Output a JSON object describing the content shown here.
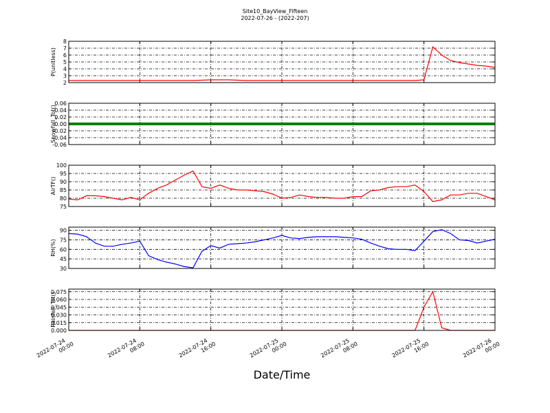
{
  "chart_data": [
    {
      "type": "line",
      "title": "Site10_BayView_Fifteen",
      "subtitle": "2022-07-26 - (2022-207)",
      "y_label": "P(unitless)",
      "color": "#ff0000",
      "ylim": [
        2,
        8
      ],
      "yticks": [
        2,
        3,
        4,
        5,
        6,
        7,
        8
      ],
      "grid": true,
      "xlim": [
        "2022-07-24 00:00",
        "2022-07-26 00:00"
      ],
      "xticks": [
        "2022-07-24 00:00",
        "2022-07-24 08:00",
        "2022-07-24 16:00",
        "2022-07-25 00:00",
        "2022-07-25 08:00",
        "2022-07-25 16:00",
        "2022-07-26 00:00"
      ],
      "x": [
        "2022-07-24 00:00",
        "2022-07-24 01:00",
        "2022-07-24 02:00",
        "2022-07-24 03:00",
        "2022-07-24 04:00",
        "2022-07-24 05:00",
        "2022-07-24 06:00",
        "2022-07-24 07:00",
        "2022-07-24 08:00",
        "2022-07-24 09:00",
        "2022-07-24 10:00",
        "2022-07-24 11:00",
        "2022-07-24 12:00",
        "2022-07-24 13:00",
        "2022-07-24 14:00",
        "2022-07-24 15:00",
        "2022-07-24 16:00",
        "2022-07-24 17:00",
        "2022-07-24 18:00",
        "2022-07-24 19:00",
        "2022-07-24 20:00",
        "2022-07-24 21:00",
        "2022-07-24 22:00",
        "2022-07-24 23:00",
        "2022-07-25 00:00",
        "2022-07-25 01:00",
        "2022-07-25 02:00",
        "2022-07-25 03:00",
        "2022-07-25 04:00",
        "2022-07-25 05:00",
        "2022-07-25 06:00",
        "2022-07-25 07:00",
        "2022-07-25 08:00",
        "2022-07-25 09:00",
        "2022-07-25 10:00",
        "2022-07-25 11:00",
        "2022-07-25 12:00",
        "2022-07-25 13:00",
        "2022-07-25 14:00",
        "2022-07-25 15:00",
        "2022-07-25 16:00",
        "2022-07-25 17:00",
        "2022-07-25 18:00",
        "2022-07-25 19:00",
        "2022-07-25 20:00",
        "2022-07-25 21:00",
        "2022-07-25 22:00",
        "2022-07-25 23:00",
        "2022-07-26 00:00"
      ],
      "values": [
        2.3,
        2.3,
        2.3,
        2.3,
        2.3,
        2.3,
        2.3,
        2.3,
        2.3,
        2.3,
        2.3,
        2.3,
        2.3,
        2.3,
        2.3,
        2.35,
        2.4,
        2.4,
        2.4,
        2.35,
        2.3,
        2.3,
        2.3,
        2.3,
        2.3,
        2.3,
        2.3,
        2.3,
        2.3,
        2.3,
        2.3,
        2.3,
        2.3,
        2.3,
        2.3,
        2.3,
        2.3,
        2.3,
        2.3,
        2.3,
        2.4,
        7.2,
        6.0,
        5.2,
        4.9,
        4.7,
        4.5,
        4.4,
        4.2
      ]
    },
    {
      "type": "line",
      "y_label": "Snowfall_Tot()",
      "color": "#008000",
      "thick": true,
      "ylim": [
        -0.06,
        0.06
      ],
      "yticks": [
        {
          "value": -0.06,
          "label": "-0.06"
        },
        {
          "value": -0.04,
          "label": "-0.04"
        },
        {
          "value": -0.02,
          "label": "-0.02"
        },
        {
          "value": 0,
          "label": "0.00"
        },
        0.02,
        0.04,
        0.06
      ],
      "grid": true,
      "xlim": [
        "2022-07-24 00:00",
        "2022-07-26 00:00"
      ],
      "xticks": [
        "2022-07-24 00:00",
        "2022-07-24 08:00",
        "2022-07-24 16:00",
        "2022-07-25 00:00",
        "2022-07-25 08:00",
        "2022-07-25 16:00",
        "2022-07-26 00:00"
      ],
      "x": [
        "2022-07-24 00:00",
        "2022-07-24 01:00",
        "2022-07-24 02:00",
        "2022-07-24 03:00",
        "2022-07-24 04:00",
        "2022-07-24 05:00",
        "2022-07-24 06:00",
        "2022-07-24 07:00",
        "2022-07-24 08:00",
        "2022-07-24 09:00",
        "2022-07-24 10:00",
        "2022-07-24 11:00",
        "2022-07-24 12:00",
        "2022-07-24 13:00",
        "2022-07-24 14:00",
        "2022-07-24 15:00",
        "2022-07-24 16:00",
        "2022-07-24 17:00",
        "2022-07-24 18:00",
        "2022-07-24 19:00",
        "2022-07-24 20:00",
        "2022-07-24 21:00",
        "2022-07-24 22:00",
        "2022-07-24 23:00",
        "2022-07-25 00:00",
        "2022-07-25 01:00",
        "2022-07-25 02:00",
        "2022-07-25 03:00",
        "2022-07-25 04:00",
        "2022-07-25 05:00",
        "2022-07-25 06:00",
        "2022-07-25 07:00",
        "2022-07-25 08:00",
        "2022-07-25 09:00",
        "2022-07-25 10:00",
        "2022-07-25 11:00",
        "2022-07-25 12:00",
        "2022-07-25 13:00",
        "2022-07-25 14:00",
        "2022-07-25 15:00",
        "2022-07-25 16:00",
        "2022-07-25 17:00",
        "2022-07-25 18:00",
        "2022-07-25 19:00",
        "2022-07-25 20:00",
        "2022-07-25 21:00",
        "2022-07-25 22:00",
        "2022-07-25 23:00",
        "2022-07-26 00:00"
      ],
      "values": [
        0,
        0,
        0,
        0,
        0,
        0,
        0,
        0,
        0,
        0,
        0,
        0,
        0,
        0,
        0,
        0,
        0,
        0,
        0,
        0,
        0,
        0,
        0,
        0,
        0,
        0,
        0,
        0,
        0,
        0,
        0,
        0,
        0,
        0,
        0,
        0,
        0,
        0,
        0,
        0,
        0,
        0,
        0,
        0,
        0,
        0,
        0,
        0,
        0
      ]
    },
    {
      "type": "line",
      "y_label": "AirTF()",
      "color": "#ff0000",
      "ylim": [
        75,
        100
      ],
      "yticks": [
        75,
        80,
        85,
        90,
        95,
        100
      ],
      "grid": true,
      "xlim": [
        "2022-07-24 00:00",
        "2022-07-26 00:00"
      ],
      "xticks": [
        "2022-07-24 00:00",
        "2022-07-24 08:00",
        "2022-07-24 16:00",
        "2022-07-25 00:00",
        "2022-07-25 08:00",
        "2022-07-25 16:00",
        "2022-07-26 00:00"
      ],
      "x": [
        "2022-07-24 00:00",
        "2022-07-24 01:00",
        "2022-07-24 02:00",
        "2022-07-24 03:00",
        "2022-07-24 04:00",
        "2022-07-24 05:00",
        "2022-07-24 06:00",
        "2022-07-24 07:00",
        "2022-07-24 08:00",
        "2022-07-24 09:00",
        "2022-07-24 10:00",
        "2022-07-24 11:00",
        "2022-07-24 12:00",
        "2022-07-24 13:00",
        "2022-07-24 14:00",
        "2022-07-24 15:00",
        "2022-07-24 16:00",
        "2022-07-24 17:00",
        "2022-07-24 18:00",
        "2022-07-24 19:00",
        "2022-07-24 20:00",
        "2022-07-24 21:00",
        "2022-07-24 22:00",
        "2022-07-24 23:00",
        "2022-07-25 00:00",
        "2022-07-25 01:00",
        "2022-07-25 02:00",
        "2022-07-25 03:00",
        "2022-07-25 04:00",
        "2022-07-25 05:00",
        "2022-07-25 06:00",
        "2022-07-25 07:00",
        "2022-07-25 08:00",
        "2022-07-25 09:00",
        "2022-07-25 10:00",
        "2022-07-25 11:00",
        "2022-07-25 12:00",
        "2022-07-25 13:00",
        "2022-07-25 14:00",
        "2022-07-25 15:00",
        "2022-07-25 16:00",
        "2022-07-25 17:00",
        "2022-07-25 18:00",
        "2022-07-25 19:00",
        "2022-07-25 20:00",
        "2022-07-25 21:00",
        "2022-07-25 22:00",
        "2022-07-25 23:00",
        "2022-07-26 00:00"
      ],
      "values": [
        79.5,
        79,
        81.5,
        81.5,
        81,
        80,
        79,
        80.5,
        79,
        83,
        86,
        88,
        91,
        94,
        96.5,
        87,
        86,
        88,
        86,
        85,
        85,
        84.5,
        84,
        82.5,
        80,
        80.5,
        82,
        81,
        80.5,
        80.5,
        80,
        80,
        81,
        81,
        84.5,
        85,
        86.5,
        87,
        87,
        88,
        84,
        78,
        79,
        82,
        82,
        83,
        83,
        81,
        79
      ]
    },
    {
      "type": "line",
      "y_label": "RH(%)",
      "color": "#0000ff",
      "ylim": [
        30,
        95
      ],
      "yticks": [
        30,
        45,
        60,
        75,
        90
      ],
      "grid": true,
      "xlim": [
        "2022-07-24 00:00",
        "2022-07-26 00:00"
      ],
      "xticks": [
        "2022-07-24 00:00",
        "2022-07-24 08:00",
        "2022-07-24 16:00",
        "2022-07-25 00:00",
        "2022-07-25 08:00",
        "2022-07-25 16:00",
        "2022-07-26 00:00"
      ],
      "x": [
        "2022-07-24 00:00",
        "2022-07-24 01:00",
        "2022-07-24 02:00",
        "2022-07-24 03:00",
        "2022-07-24 04:00",
        "2022-07-24 05:00",
        "2022-07-24 06:00",
        "2022-07-24 07:00",
        "2022-07-24 08:00",
        "2022-07-24 09:00",
        "2022-07-24 10:00",
        "2022-07-24 11:00",
        "2022-07-24 12:00",
        "2022-07-24 13:00",
        "2022-07-24 14:00",
        "2022-07-24 15:00",
        "2022-07-24 16:00",
        "2022-07-24 17:00",
        "2022-07-24 18:00",
        "2022-07-24 19:00",
        "2022-07-24 20:00",
        "2022-07-24 21:00",
        "2022-07-24 22:00",
        "2022-07-24 23:00",
        "2022-07-25 00:00",
        "2022-07-25 01:00",
        "2022-07-25 02:00",
        "2022-07-25 03:00",
        "2022-07-25 04:00",
        "2022-07-25 05:00",
        "2022-07-25 06:00",
        "2022-07-25 07:00",
        "2022-07-25 08:00",
        "2022-07-25 09:00",
        "2022-07-25 10:00",
        "2022-07-25 11:00",
        "2022-07-25 12:00",
        "2022-07-25 13:00",
        "2022-07-25 14:00",
        "2022-07-25 15:00",
        "2022-07-25 16:00",
        "2022-07-25 17:00",
        "2022-07-25 18:00",
        "2022-07-25 19:00",
        "2022-07-25 20:00",
        "2022-07-25 21:00",
        "2022-07-25 22:00",
        "2022-07-25 23:00",
        "2022-07-26 00:00"
      ],
      "values": [
        85,
        84,
        80,
        70,
        65,
        65,
        68,
        70,
        73,
        50,
        44,
        40,
        37,
        33,
        31,
        57,
        66,
        62,
        68,
        69,
        70,
        72,
        75,
        78,
        82,
        78,
        77,
        79,
        80,
        80,
        80,
        79,
        78,
        76,
        70,
        65,
        61,
        60,
        60,
        58,
        73,
        88,
        91,
        85,
        75,
        74,
        70,
        73,
        76
      ]
    },
    {
      "type": "line",
      "y_label": "Rainfall_Tot()",
      "x_label": "Date/Time",
      "color": "#ff0000",
      "xtick_labels": true,
      "ylim": [
        0,
        0.08
      ],
      "yticks": [
        {
          "value": 0,
          "label": "0.000"
        },
        0.015,
        {
          "value": 0.03,
          "label": "0.030"
        },
        0.045,
        {
          "value": 0.06,
          "label": "0.060"
        },
        0.075
      ],
      "grid": true,
      "xlim": [
        "2022-07-24 00:00",
        "2022-07-26 00:00"
      ],
      "xticks": [
        "2022-07-24 00:00",
        "2022-07-24 08:00",
        "2022-07-24 16:00",
        "2022-07-25 00:00",
        "2022-07-25 08:00",
        "2022-07-25 16:00",
        "2022-07-26 00:00"
      ],
      "x": [
        "2022-07-24 00:00",
        "2022-07-24 01:00",
        "2022-07-24 02:00",
        "2022-07-24 03:00",
        "2022-07-24 04:00",
        "2022-07-24 05:00",
        "2022-07-24 06:00",
        "2022-07-24 07:00",
        "2022-07-24 08:00",
        "2022-07-24 09:00",
        "2022-07-24 10:00",
        "2022-07-24 11:00",
        "2022-07-24 12:00",
        "2022-07-24 13:00",
        "2022-07-24 14:00",
        "2022-07-24 15:00",
        "2022-07-24 16:00",
        "2022-07-24 17:00",
        "2022-07-24 18:00",
        "2022-07-24 19:00",
        "2022-07-24 20:00",
        "2022-07-24 21:00",
        "2022-07-24 22:00",
        "2022-07-24 23:00",
        "2022-07-25 00:00",
        "2022-07-25 01:00",
        "2022-07-25 02:00",
        "2022-07-25 03:00",
        "2022-07-25 04:00",
        "2022-07-25 05:00",
        "2022-07-25 06:00",
        "2022-07-25 07:00",
        "2022-07-25 08:00",
        "2022-07-25 09:00",
        "2022-07-25 10:00",
        "2022-07-25 11:00",
        "2022-07-25 12:00",
        "2022-07-25 13:00",
        "2022-07-25 14:00",
        "2022-07-25 15:00",
        "2022-07-25 16:00",
        "2022-07-25 17:00",
        "2022-07-25 18:00",
        "2022-07-25 19:00",
        "2022-07-25 20:00",
        "2022-07-25 21:00",
        "2022-07-25 22:00",
        "2022-07-25 23:00",
        "2022-07-26 00:00"
      ],
      "values": [
        0,
        0,
        0,
        0,
        0,
        0,
        0,
        0,
        0,
        0,
        0,
        0,
        0,
        0,
        0,
        0,
        0,
        0,
        0,
        0,
        0,
        0,
        0,
        0,
        0,
        0,
        0,
        0,
        0,
        0,
        0,
        0,
        0,
        0,
        0,
        0,
        0,
        0,
        0,
        0,
        0.045,
        0.075,
        0.005,
        0,
        0,
        0,
        0,
        0,
        0
      ]
    }
  ]
}
